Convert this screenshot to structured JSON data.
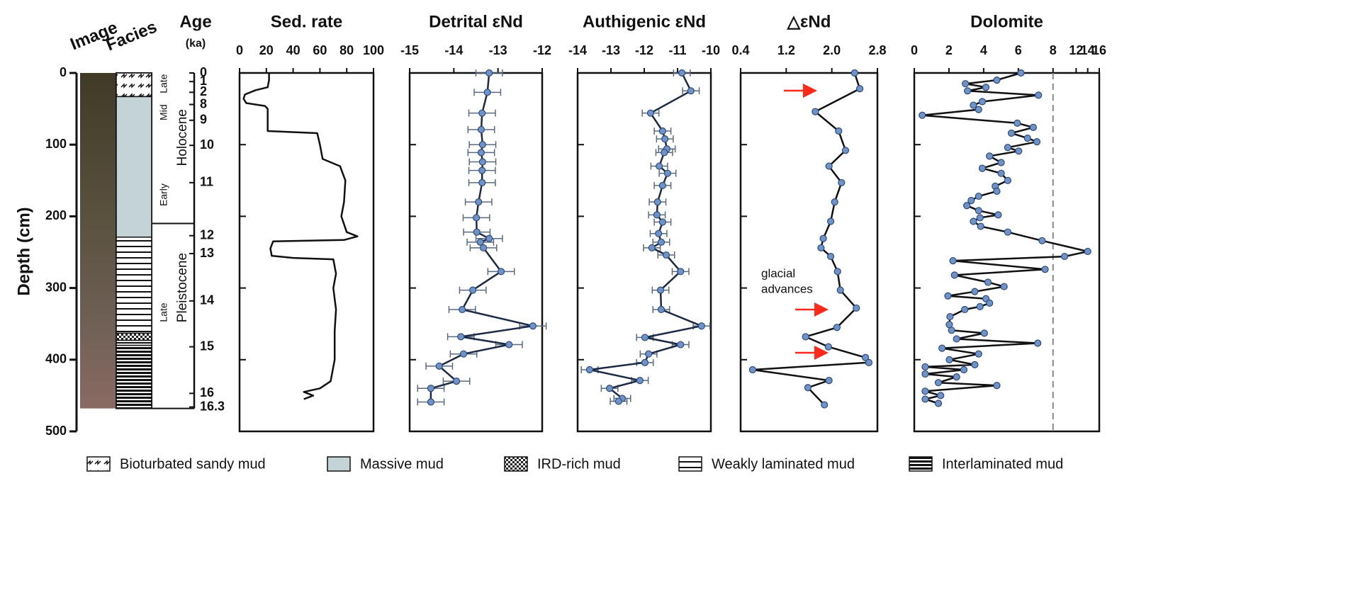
{
  "depth_axis": {
    "label": "Depth (cm)",
    "ylim": [
      0,
      500
    ],
    "yticks": [
      0,
      100,
      200,
      300,
      400,
      500
    ]
  },
  "core": {
    "label": "Image",
    "depth_range": [
      0,
      468
    ]
  },
  "facies": {
    "label": "Facies",
    "depth_range": [
      0,
      468
    ],
    "legend": [
      {
        "label": "Bioturbated sandy mud",
        "intervals": [
          [
            0,
            33
          ]
        ]
      },
      {
        "label": "Massive mud",
        "intervals": [
          [
            33,
            229
          ]
        ]
      },
      {
        "label": "IRD-rich mud",
        "intervals": [
          [
            363,
            373
          ]
        ]
      },
      {
        "label": "Weakly laminated mud",
        "intervals": [
          [
            229,
            363
          ],
          [
            373,
            380
          ]
        ]
      },
      {
        "label": "Interlaminated mud",
        "intervals": [
          [
            380,
            468
          ]
        ]
      }
    ]
  },
  "age": {
    "label": "Age",
    "unit": "(ka)",
    "ticks": [
      {
        "value": 0,
        "label": "0"
      },
      {
        "value": 12,
        "label": "1"
      },
      {
        "value": 27,
        "label": "2"
      },
      {
        "value": 44,
        "label": "8"
      },
      {
        "value": 66,
        "label": "9"
      },
      {
        "value": 101,
        "label": "10"
      },
      {
        "value": 153,
        "label": "11"
      },
      {
        "value": 227,
        "label": "12"
      },
      {
        "value": 252,
        "label": "13"
      },
      {
        "value": 318,
        "label": "14"
      },
      {
        "value": 382,
        "label": "15"
      },
      {
        "value": 447,
        "label": "16"
      },
      {
        "value": 466,
        "label": "16.3"
      }
    ],
    "periods": [
      {
        "label": "Holocene",
        "range": [
          0,
          210
        ],
        "sub": [
          {
            "label": "Late",
            "range": [
              0,
              30
            ]
          },
          {
            "label": "Mid",
            "range": [
              30,
              80
            ]
          },
          {
            "label": "Early",
            "range": [
              140,
              200
            ]
          }
        ]
      },
      {
        "label": "Pleistocene",
        "range": [
          210,
          468
        ],
        "sub": [
          {
            "label": "Late",
            "range": [
              300,
              368
            ]
          }
        ]
      }
    ]
  },
  "chart_data": [
    {
      "type": "line",
      "title": "Sed. rate",
      "xlim": [
        0,
        100
      ],
      "xticks": [
        0,
        20,
        40,
        60,
        80,
        100
      ],
      "color": "#111111",
      "depth": [
        0,
        10,
        20,
        24,
        30,
        36,
        42,
        46,
        50,
        70,
        81,
        84,
        100,
        120,
        130,
        150,
        180,
        200,
        222,
        228,
        233,
        235,
        245,
        255,
        258,
        260,
        280,
        300,
        330,
        360,
        400,
        430,
        440,
        445,
        450,
        455
      ],
      "values": [
        22,
        22,
        21,
        12,
        4,
        3,
        5,
        19,
        21,
        21,
        21,
        58,
        60,
        62,
        75,
        79,
        78,
        76,
        80,
        88,
        78,
        25,
        23,
        24,
        40,
        70,
        72,
        70,
        72,
        71,
        71,
        68,
        60,
        48,
        55,
        48
      ]
    },
    {
      "type": "line",
      "title": "Detrital εNd",
      "xlim": [
        -15,
        -12
      ],
      "xticks": [
        -15,
        -14,
        -13,
        -12
      ],
      "color": "#1c2a44",
      "marker_color": "#6f93c9",
      "depth": [
        0,
        27,
        56,
        79,
        100,
        111,
        124,
        136,
        153,
        180,
        202,
        222,
        231,
        236,
        244,
        277,
        303,
        330,
        353,
        368,
        379,
        392,
        409,
        430,
        440,
        459
      ],
      "values": [
        -13.2,
        -13.24,
        -13.36,
        -13.38,
        -13.35,
        -13.38,
        -13.35,
        -13.36,
        -13.36,
        -13.44,
        -13.49,
        -13.48,
        -13.2,
        -13.4,
        -13.33,
        -12.93,
        -13.57,
        -13.81,
        -12.21,
        -13.84,
        -12.75,
        -13.78,
        -14.33,
        -13.94,
        -14.52,
        -14.52
      ],
      "errors": [
        0.3,
        0.3,
        0.3,
        0.3,
        0.3,
        0.3,
        0.3,
        0.3,
        0.3,
        0.3,
        0.3,
        0.3,
        0.3,
        0.3,
        0.3,
        0.3,
        0.3,
        0.3,
        0.3,
        0.3,
        0.3,
        0.3,
        0.3,
        0.3,
        0.3,
        0.3
      ]
    },
    {
      "type": "line",
      "title": "Authigenic εNd",
      "xlim": [
        -14,
        -10
      ],
      "xticks": [
        -14,
        -13,
        -12,
        -11,
        -10
      ],
      "color": "#1c2a44",
      "marker_color": "#6f93c9",
      "depth": [
        0,
        25,
        56,
        81,
        92,
        106,
        111,
        130,
        140,
        157,
        180,
        198,
        208,
        224,
        236,
        244,
        254,
        277,
        303,
        330,
        353,
        369,
        379,
        392,
        404,
        414,
        429,
        440,
        454,
        458
      ],
      "values": [
        -10.87,
        -10.6,
        -11.81,
        -11.45,
        -11.38,
        -11.32,
        -11.4,
        -11.55,
        -11.3,
        -11.45,
        -11.6,
        -11.62,
        -11.45,
        -11.57,
        -11.49,
        -11.77,
        -11.34,
        -10.91,
        -11.51,
        -11.49,
        -10.28,
        -11.98,
        -10.91,
        -11.87,
        -11.98,
        -13.64,
        -12.13,
        -13.04,
        -12.66,
        -12.77
      ],
      "errors": [
        0.25,
        0.25,
        0.25,
        0.25,
        0.25,
        0.25,
        0.25,
        0.25,
        0.25,
        0.25,
        0.25,
        0.25,
        0.25,
        0.25,
        0.25,
        0.25,
        0.25,
        0.25,
        0.25,
        0.25,
        0.25,
        0.25,
        0.25,
        0.25,
        0.25,
        0.25,
        0.25,
        0.25,
        0.25,
        0.25
      ]
    },
    {
      "type": "line",
      "title": "△εNd",
      "xlim": [
        0.4,
        2.8
      ],
      "xticks": [
        0.4,
        1.2,
        {
          "value": 2,
          "label": "2.0"
        },
        2.8
      ],
      "color": "#111111",
      "marker_color": "#6f93c9",
      "depth": [
        0,
        22,
        54,
        81,
        108,
        130,
        153,
        180,
        207,
        231,
        244,
        256,
        277,
        303,
        328,
        355,
        368,
        382,
        397,
        404,
        414,
        429,
        439,
        463
      ],
      "values": [
        2.4,
        2.49,
        1.71,
        2.12,
        2.24,
        1.95,
        2.17,
        2.05,
        1.98,
        1.85,
        1.81,
        1.98,
        2.1,
        2.15,
        2.43,
        2.09,
        1.54,
        1.94,
        2.59,
        2.65,
        0.61,
        1.95,
        1.58,
        1.87
      ],
      "annotation": {
        "lines": [
          "glacial",
          "advances"
        ],
        "color": "#ff2a1a"
      }
    },
    {
      "type": "line",
      "title": "Dolomite",
      "xlim": [
        0,
        16
      ],
      "xticks": [
        0,
        2,
        4,
        6,
        8,
        12,
        14,
        16
      ],
      "x_break": 8,
      "reference_line": 8,
      "color": "#111111",
      "marker_color": "#6f93c9",
      "depth": [
        0,
        10,
        15,
        20,
        25,
        31,
        40,
        45,
        51,
        59,
        70,
        76,
        84,
        91,
        96,
        104,
        109,
        116,
        125,
        133,
        140,
        150,
        158,
        165,
        172,
        178,
        185,
        192,
        198,
        202,
        207,
        214,
        222,
        234,
        249,
        256,
        262,
        274,
        282,
        292,
        298,
        305,
        311,
        315,
        321,
        326,
        330,
        340,
        351,
        359,
        363,
        371,
        377,
        384,
        392,
        400,
        407,
        410,
        414,
        420,
        424,
        432,
        436,
        444,
        450,
        455,
        461
      ],
      "values": [
        6.15,
        4.76,
        2.95,
        4.13,
        3.07,
        7.16,
        3.92,
        3.41,
        3.71,
        0.46,
        5.94,
        6.86,
        5.6,
        6.53,
        7.07,
        5.39,
        6.02,
        4.34,
        5.01,
        3.92,
        5.01,
        5.39,
        4.67,
        4.76,
        3.71,
        3.28,
        3.03,
        3.71,
        4.84,
        3.79,
        3.41,
        3.83,
        5.39,
        7.37,
        14,
        10,
        2.23,
        7.54,
        2.32,
        4.25,
        5.18,
        3.49,
        1.94,
        4.13,
        4.34,
        3.79,
        2.91,
        2.06,
        2.02,
        2.15,
        4.04,
        2.44,
        7.12,
        1.6,
        3.71,
        2.02,
        3.49,
        0.63,
        2.86,
        0.63,
        2.44,
        1.39,
        4.76,
        0.63,
        1.52,
        0.63,
        1.39
      ]
    }
  ]
}
